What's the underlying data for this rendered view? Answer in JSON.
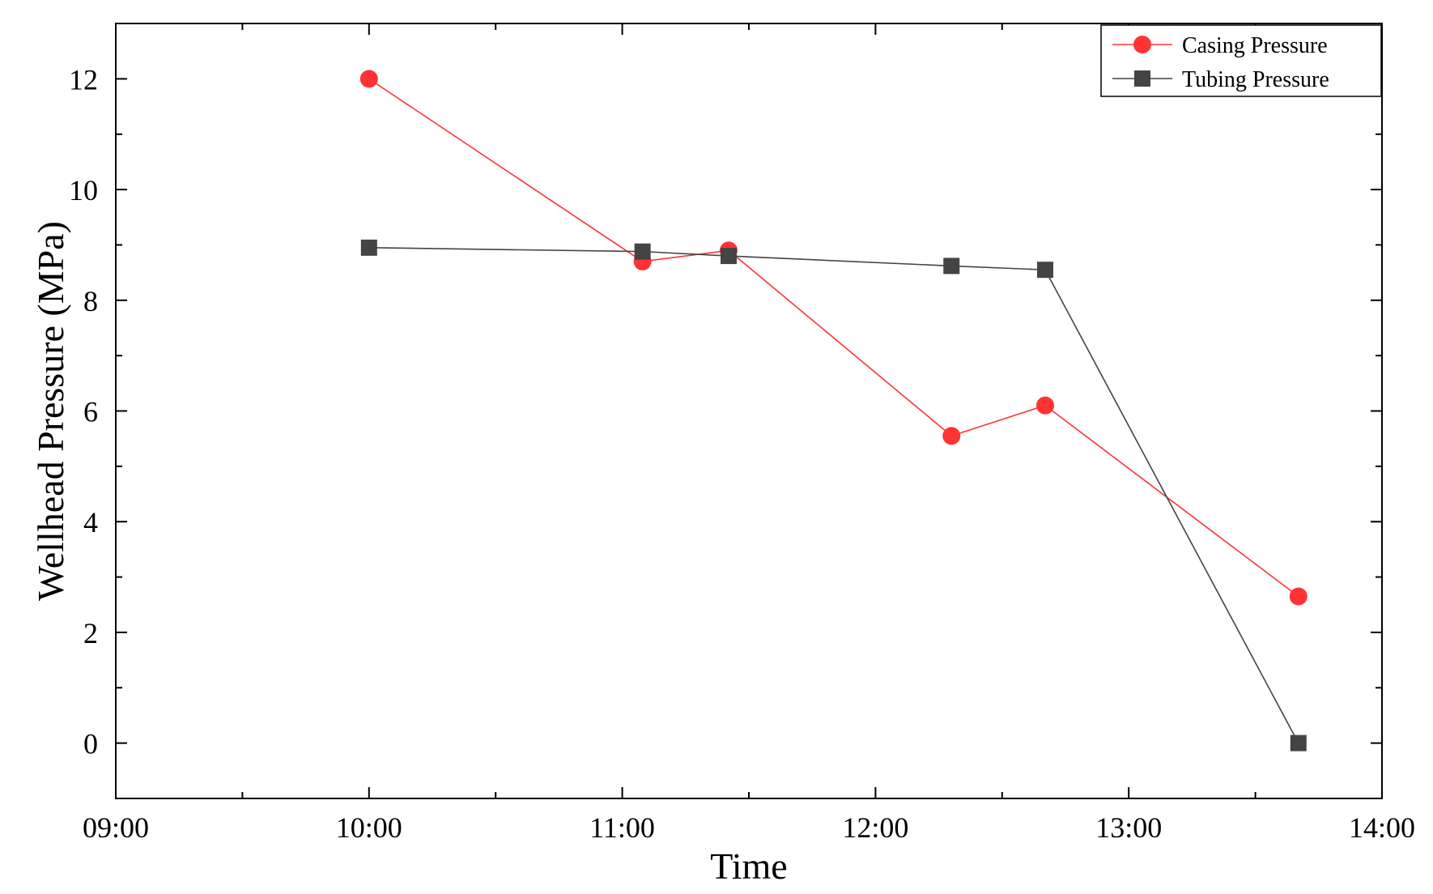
{
  "chart_data": {
    "type": "line",
    "title": "",
    "xlabel": "Time",
    "ylabel": "Wellhead Pressure (MPa)",
    "x_ticks": [
      "09:00",
      "10:00",
      "11:00",
      "12:00",
      "13:00",
      "14:00"
    ],
    "x_tick_values": [
      9,
      10,
      11,
      12,
      13,
      14
    ],
    "xlim": [
      9,
      14
    ],
    "y_ticks": [
      0,
      2,
      4,
      6,
      8,
      10,
      12
    ],
    "ylim": [
      -1,
      13
    ],
    "grid": false,
    "legend_position": "top-right",
    "series": [
      {
        "name": "Casing Pressure",
        "color": "#ff3333",
        "marker": "circle",
        "x": [
          10.0,
          11.08,
          11.42,
          12.3,
          12.67,
          13.67
        ],
        "y": [
          12.0,
          8.7,
          8.9,
          5.55,
          6.1,
          2.65
        ]
      },
      {
        "name": "Tubing Pressure",
        "color": "#444444",
        "marker": "square",
        "x": [
          10.0,
          11.08,
          11.42,
          12.3,
          12.67,
          13.67
        ],
        "y": [
          8.95,
          8.88,
          8.8,
          8.62,
          8.55,
          0.0
        ]
      }
    ]
  }
}
